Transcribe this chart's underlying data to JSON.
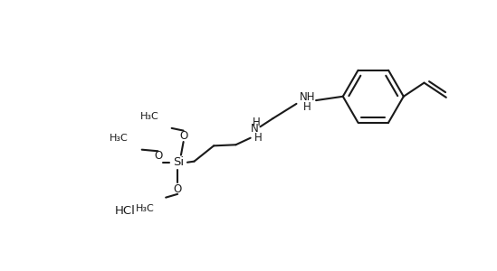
{
  "background_color": "#ffffff",
  "line_color": "#1a1a1a",
  "line_width": 1.5,
  "font_size": 8.5,
  "fig_width": 5.49,
  "fig_height": 3.0,
  "dpi": 100,
  "xlim": [
    0,
    10
  ],
  "ylim": [
    0,
    5.5
  ]
}
